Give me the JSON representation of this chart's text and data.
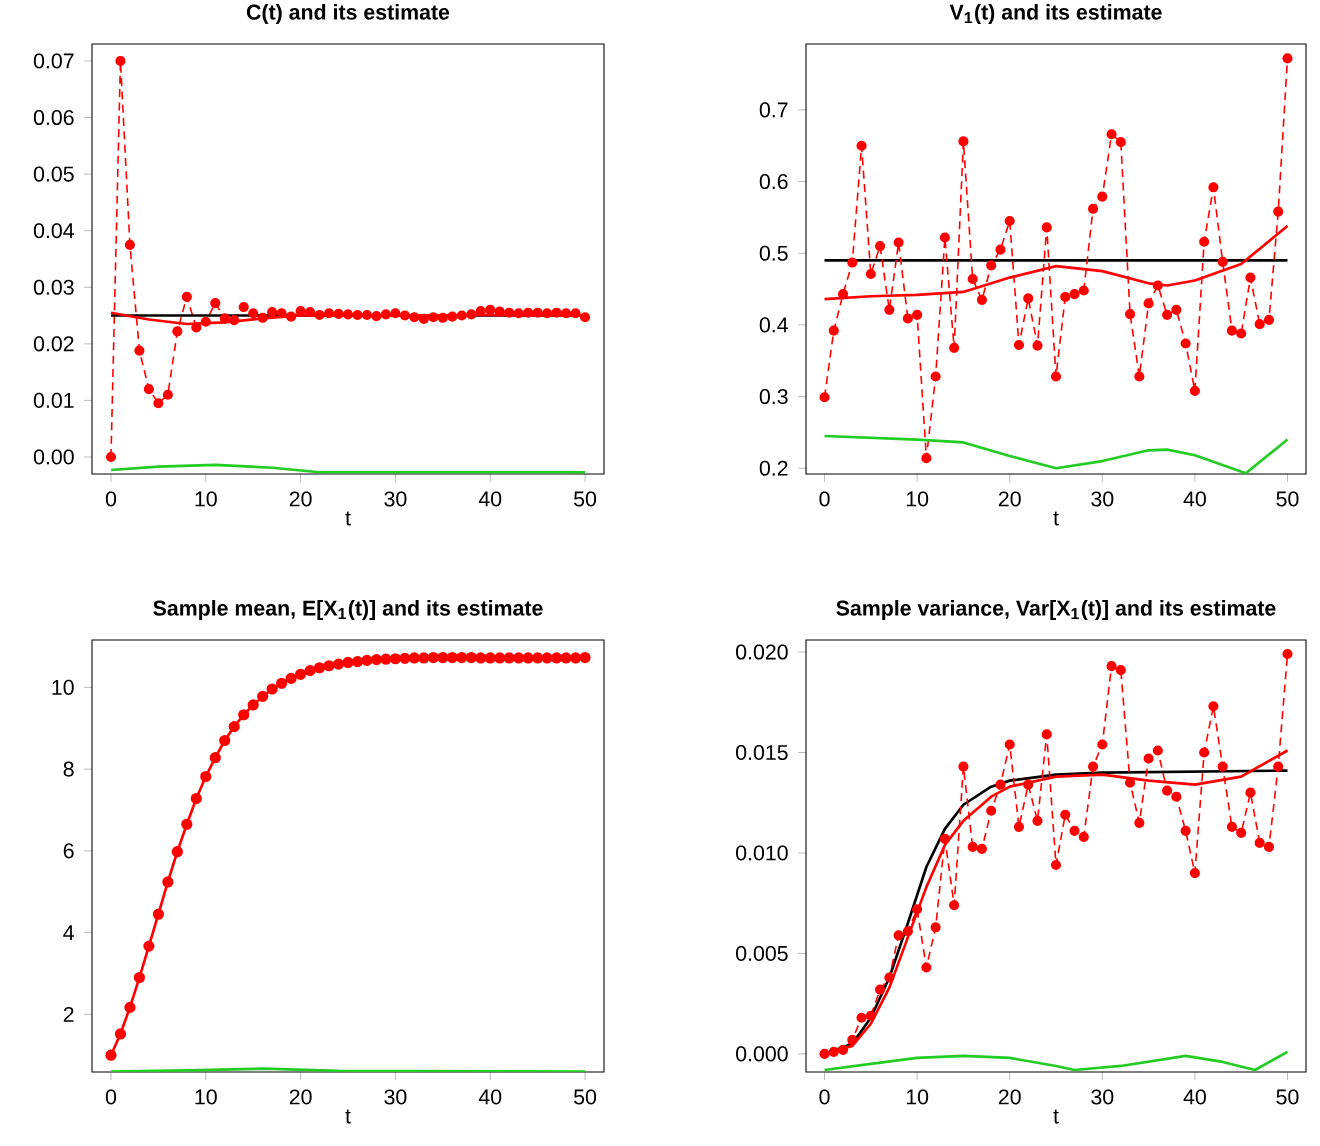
{
  "chart_data": [
    {
      "type": "line",
      "title": "C(t) and its estimate",
      "xlabel": "t",
      "xlim": [
        -2,
        52
      ],
      "ylim": [
        -0.003,
        0.073
      ],
      "xticks": [
        0,
        10,
        20,
        30,
        40,
        50
      ],
      "yticks": [
        {
          "value": 0,
          "label": "0.00"
        },
        {
          "value": 0.01,
          "label": "0.01"
        },
        {
          "value": 0.02,
          "label": "0.02"
        },
        {
          "value": 0.03,
          "label": "0.03"
        },
        {
          "value": 0.04,
          "label": "0.04"
        },
        {
          "value": 0.05,
          "label": "0.05"
        },
        {
          "value": 0.06,
          "label": "0.06"
        },
        {
          "value": 0.07,
          "label": "0.07"
        }
      ],
      "series": [
        {
          "color": "#ff0000",
          "line_style": "dashed",
          "marker": "circle",
          "x": [
            0,
            1,
            2,
            3,
            4,
            5,
            6,
            7,
            8,
            9,
            10,
            11,
            12,
            13,
            14,
            15,
            16,
            17,
            18,
            19,
            20,
            21,
            22,
            23,
            24,
            25,
            26,
            27,
            28,
            29,
            30,
            31,
            32,
            33,
            34,
            35,
            36,
            37,
            38,
            39,
            40,
            41,
            42,
            43,
            44,
            45,
            46,
            47,
            48,
            49,
            50
          ],
          "values": [
            0,
            0.07,
            0.0375,
            0.0188,
            0.012,
            0.0095,
            0.011,
            0.0222,
            0.0283,
            0.0229,
            0.0239,
            0.0272,
            0.0245,
            0.0242,
            0.0265,
            0.0254,
            0.0246,
            0.0256,
            0.0254,
            0.0248,
            0.0258,
            0.0256,
            0.0251,
            0.0254,
            0.0253,
            0.0252,
            0.0251,
            0.0251,
            0.0249,
            0.0252,
            0.0254,
            0.025,
            0.0247,
            0.0244,
            0.0247,
            0.0246,
            0.0248,
            0.025,
            0.0252,
            0.0258,
            0.026,
            0.0257,
            0.0255,
            0.0254,
            0.0255,
            0.0255,
            0.0254,
            0.0255,
            0.0254,
            0.0254,
            0.0247
          ]
        },
        {
          "color": "#000000",
          "line_style": "solid",
          "marker": "none",
          "x": [
            0,
            50
          ],
          "values": [
            0.025,
            0.025
          ]
        },
        {
          "color": "#ff0000",
          "line_style": "solid",
          "marker": "none",
          "x": [
            0,
            4,
            8,
            12,
            16,
            20,
            30,
            40,
            50
          ],
          "values": [
            0.0255,
            0.0243,
            0.0235,
            0.0238,
            0.0245,
            0.025,
            0.025,
            0.0251,
            0.025
          ]
        },
        {
          "color": "#22cc22",
          "line_style": "solid",
          "marker": "none",
          "x": [
            0,
            5,
            11,
            17,
            22,
            30,
            40,
            50
          ],
          "values": [
            -0.0023,
            -0.0017,
            -0.0014,
            -0.0019,
            -0.0027,
            -0.0027,
            -0.0027,
            -0.0027
          ]
        }
      ]
    },
    {
      "type": "line",
      "title": "V$_{1}$(t) and its estimate",
      "xlabel": "t",
      "xlim": [
        -2,
        52
      ],
      "ylim": [
        0.192,
        0.792
      ],
      "xticks": [
        0,
        10,
        20,
        30,
        40,
        50
      ],
      "yticks": [
        0.2,
        0.3,
        0.4,
        0.5,
        0.6,
        0.7
      ],
      "series": [
        {
          "color": "#000000",
          "line_style": "solid",
          "marker": "none",
          "x": [
            0,
            50
          ],
          "values": [
            0.49,
            0.49
          ]
        },
        {
          "color": "#ff0000",
          "line_style": "dashed",
          "marker": "circle",
          "x": [
            0,
            1,
            2,
            3,
            4,
            5,
            6,
            7,
            8,
            9,
            10,
            11,
            12,
            13,
            14,
            15,
            16,
            17,
            18,
            19,
            20,
            21,
            22,
            23,
            24,
            25,
            26,
            27,
            28,
            29,
            30,
            31,
            32,
            33,
            34,
            35,
            36,
            37,
            38,
            39,
            40,
            41,
            42,
            43,
            44,
            45,
            46,
            47,
            48,
            49,
            50
          ],
          "values": [
            0.299,
            0.392,
            0.443,
            0.487,
            0.65,
            0.471,
            0.51,
            0.421,
            0.515,
            0.409,
            0.414,
            0.214,
            0.328,
            0.522,
            0.368,
            0.656,
            0.464,
            0.435,
            0.483,
            0.505,
            0.545,
            0.372,
            0.437,
            0.371,
            0.536,
            0.328,
            0.439,
            0.443,
            0.448,
            0.562,
            0.579,
            0.666,
            0.655,
            0.415,
            0.328,
            0.43,
            0.455,
            0.414,
            0.421,
            0.374,
            0.308,
            0.516,
            0.592,
            0.488,
            0.392,
            0.388,
            0.466,
            0.401,
            0.407,
            0.558,
            0.772
          ]
        },
        {
          "color": "#ff0000",
          "line_style": "solid",
          "marker": "none",
          "x": [
            0,
            5,
            10,
            15,
            20,
            25,
            30,
            35,
            37,
            40,
            45,
            50
          ],
          "values": [
            0.436,
            0.44,
            0.442,
            0.446,
            0.466,
            0.482,
            0.475,
            0.458,
            0.455,
            0.462,
            0.485,
            0.538
          ]
        },
        {
          "color": "#22cc22",
          "line_style": "solid",
          "marker": "none",
          "x": [
            0,
            10,
            15,
            20,
            25,
            30,
            35,
            37,
            40,
            45.5,
            50
          ],
          "values": [
            0.245,
            0.24,
            0.236,
            0.217,
            0.2,
            0.21,
            0.225,
            0.226,
            0.218,
            0.193,
            0.24
          ]
        }
      ]
    },
    {
      "type": "line",
      "title": "Sample mean, E[X$_{1}$(t)] and its estimate",
      "xlabel": "t",
      "xlim": [
        -2,
        52
      ],
      "ylim": [
        0.59,
        11.16
      ],
      "xticks": [
        0,
        10,
        20,
        30,
        40,
        50
      ],
      "yticks": [
        2,
        4,
        6,
        8,
        10
      ],
      "series": [
        {
          "color": "#ff0000",
          "line_style": "solid",
          "marker": "circle",
          "x": [
            0,
            1,
            2,
            3,
            4,
            5,
            6,
            7,
            8,
            9,
            10,
            11,
            12,
            13,
            14,
            15,
            16,
            17,
            18,
            19,
            20,
            21,
            22,
            23,
            24,
            25,
            26,
            27,
            28,
            29,
            30,
            31,
            32,
            33,
            34,
            35,
            36,
            37,
            38,
            39,
            40,
            41,
            42,
            43,
            44,
            45,
            46,
            47,
            48,
            49,
            50
          ],
          "values": [
            1.0,
            1.52,
            2.17,
            2.9,
            3.67,
            4.45,
            5.24,
            5.98,
            6.65,
            7.28,
            7.82,
            8.28,
            8.7,
            9.04,
            9.33,
            9.57,
            9.78,
            9.96,
            10.1,
            10.22,
            10.32,
            10.41,
            10.48,
            10.53,
            10.57,
            10.61,
            10.63,
            10.66,
            10.68,
            10.69,
            10.7,
            10.71,
            10.72,
            10.72,
            10.73,
            10.73,
            10.73,
            10.73,
            10.73,
            10.72,
            10.72,
            10.72,
            10.72,
            10.72,
            10.72,
            10.72,
            10.72,
            10.72,
            10.72,
            10.72,
            10.73
          ]
        },
        {
          "color": "#22cc22",
          "line_style": "solid",
          "marker": "none",
          "x": [
            0,
            8,
            16,
            24,
            50
          ],
          "values": [
            0.6,
            0.63,
            0.67,
            0.62,
            0.6
          ]
        }
      ]
    },
    {
      "type": "line",
      "title": "Sample variance, Var[X$_{1}$(t)] and its estimate",
      "xlabel": "t",
      "xlim": [
        -2,
        52
      ],
      "ylim": [
        -0.0009,
        0.0206
      ],
      "xticks": [
        0,
        10,
        20,
        30,
        40,
        50
      ],
      "yticks": [
        {
          "value": 0,
          "label": "0.000"
        },
        {
          "value": 0.005,
          "label": "0.005"
        },
        {
          "value": 0.01,
          "label": "0.010"
        },
        {
          "value": 0.015,
          "label": "0.015"
        },
        {
          "value": 0.02,
          "label": "0.020"
        }
      ],
      "series": [
        {
          "color": "#000000",
          "line_style": "solid",
          "marker": "none",
          "x": [
            0,
            3,
            5,
            7,
            9,
            11,
            13,
            15,
            18,
            20,
            25,
            30,
            50
          ],
          "values": [
            0,
            0.0005,
            0.0018,
            0.0038,
            0.0065,
            0.0093,
            0.0112,
            0.0124,
            0.0133,
            0.0136,
            0.0139,
            0.014,
            0.0141
          ]
        },
        {
          "color": "#ff0000",
          "line_style": "dashed",
          "marker": "circle",
          "x": [
            0,
            1,
            2,
            3,
            4,
            5,
            6,
            7,
            8,
            9,
            10,
            11,
            12,
            13,
            14,
            15,
            16,
            17,
            18,
            19,
            20,
            21,
            22,
            23,
            24,
            25,
            26,
            27,
            28,
            29,
            30,
            31,
            32,
            33,
            34,
            35,
            36,
            37,
            38,
            39,
            40,
            41,
            42,
            43,
            44,
            45,
            46,
            47,
            48,
            49,
            50
          ],
          "values": [
            0,
            0.0001,
            0.0002,
            0.0007,
            0.0018,
            0.0019,
            0.0032,
            0.0038,
            0.0059,
            0.0061,
            0.0072,
            0.0043,
            0.0063,
            0.0107,
            0.0074,
            0.0143,
            0.0103,
            0.0102,
            0.0121,
            0.0134,
            0.0154,
            0.0113,
            0.0134,
            0.0116,
            0.0159,
            0.0094,
            0.0119,
            0.0111,
            0.0108,
            0.0143,
            0.0154,
            0.0193,
            0.0191,
            0.0135,
            0.0115,
            0.0147,
            0.0151,
            0.0131,
            0.0128,
            0.0111,
            0.009,
            0.015,
            0.0173,
            0.0143,
            0.0113,
            0.011,
            0.013,
            0.0105,
            0.0103,
            0.0143,
            0.0199
          ]
        },
        {
          "color": "#ff0000",
          "line_style": "solid",
          "marker": "none",
          "x": [
            0,
            3,
            5,
            7,
            9,
            11,
            13,
            15,
            18,
            20,
            25,
            30,
            35,
            40,
            45,
            50
          ],
          "values": [
            0,
            0.0004,
            0.0015,
            0.0033,
            0.0058,
            0.0083,
            0.0104,
            0.0116,
            0.0128,
            0.0133,
            0.0138,
            0.0139,
            0.0136,
            0.0134,
            0.0138,
            0.0151
          ]
        },
        {
          "color": "#22cc22",
          "line_style": "solid",
          "marker": "none",
          "x": [
            0,
            5,
            10,
            15,
            20,
            25,
            27,
            32,
            39,
            43,
            46.5,
            50
          ],
          "values": [
            -0.0008,
            -0.0005,
            -0.0002,
            -0.0001,
            -0.0002,
            -0.0006,
            -0.0008,
            -0.0006,
            -0.0001,
            -0.0004,
            -0.0008,
            0.0001
          ]
        }
      ]
    }
  ]
}
